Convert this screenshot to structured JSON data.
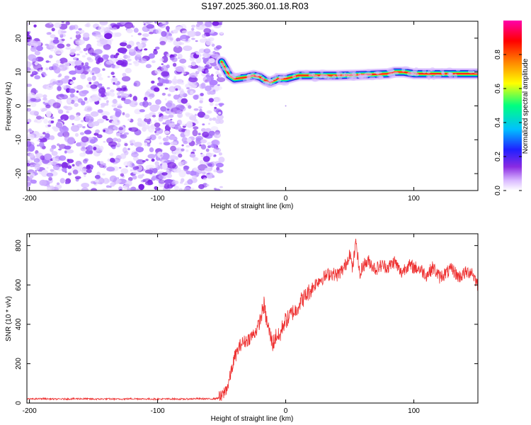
{
  "title": "S197.2025.360.01.18.R03",
  "chart_data": [
    {
      "id": "spectrogram",
      "type": "heatmap",
      "xlabel": "Height of straight line (km)",
      "ylabel": "Frequency (Hz)",
      "xlim": [
        -202,
        150
      ],
      "ylim": [
        -25,
        25
      ],
      "xticks": [
        -200,
        -100,
        0,
        100
      ],
      "yticks": [
        -20,
        -10,
        0,
        10,
        20
      ],
      "noise_region_x": [
        -202,
        -50
      ],
      "signal_x_start": -50,
      "signal_band_center_hz": [
        [
          -50,
          13
        ],
        [
          -47,
          11
        ],
        [
          -44,
          9
        ],
        [
          -40,
          8
        ],
        [
          -30,
          8.5
        ],
        [
          -25,
          9
        ],
        [
          -20,
          8.5
        ],
        [
          -16,
          7.5
        ],
        [
          -12,
          7
        ],
        [
          -6,
          8
        ],
        [
          0,
          8
        ],
        [
          5,
          8.5
        ],
        [
          10,
          9
        ],
        [
          20,
          9
        ],
        [
          40,
          9
        ],
        [
          60,
          9.2
        ],
        [
          80,
          9.5
        ],
        [
          85,
          10
        ],
        [
          92,
          10
        ],
        [
          100,
          9.5
        ],
        [
          110,
          9.5
        ],
        [
          150,
          9.5
        ]
      ],
      "colorbar": {
        "label": "Normalized spectral amplitude",
        "range": [
          0,
          1
        ],
        "ticks": [
          "0.0",
          "0.2",
          "0.4",
          "0.6",
          "0.8"
        ],
        "colors": [
          "#ffffff",
          "#d9b8ff",
          "#8a2be2",
          "#2020ff",
          "#00c0ff",
          "#00ff80",
          "#ffff00",
          "#ff8000",
          "#ff0000",
          "#ff00aa"
        ]
      }
    },
    {
      "id": "snr",
      "type": "line",
      "xlabel": "Height of straight line (km)",
      "ylabel": "SNR (10 * v/v)",
      "xlim": [
        -202,
        150
      ],
      "ylim": [
        0,
        860
      ],
      "xticks": [
        -200,
        -100,
        0,
        100
      ],
      "yticks": [
        0,
        200,
        400,
        600,
        800
      ],
      "color": "#ee3030",
      "series": [
        {
          "name": "SNR",
          "x": [
            -202,
            -190,
            -180,
            -170,
            -160,
            -150,
            -140,
            -130,
            -120,
            -110,
            -100,
            -90,
            -80,
            -70,
            -60,
            -55,
            -50,
            -45,
            -40,
            -35,
            -30,
            -25,
            -22,
            -20,
            -17,
            -15,
            -12,
            -10,
            -7,
            -5,
            -2,
            0,
            2,
            5,
            8,
            10,
            12,
            15,
            20,
            25,
            30,
            35,
            40,
            45,
            48,
            50,
            52,
            55,
            58,
            60,
            65,
            70,
            75,
            80,
            85,
            90,
            95,
            100,
            105,
            110,
            115,
            120,
            125,
            130,
            135,
            140,
            145,
            150
          ],
          "y": [
            20,
            22,
            20,
            21,
            22,
            20,
            21,
            20,
            22,
            21,
            20,
            21,
            20,
            22,
            21,
            22,
            30,
            90,
            230,
            300,
            320,
            350,
            380,
            420,
            500,
            420,
            340,
            300,
            350,
            330,
            400,
            420,
            430,
            460,
            470,
            500,
            520,
            540,
            580,
            620,
            640,
            660,
            650,
            680,
            720,
            770,
            680,
            820,
            640,
            700,
            720,
            680,
            700,
            690,
            720,
            660,
            700,
            690,
            680,
            650,
            690,
            640,
            660,
            680,
            640,
            660,
            670,
            600
          ]
        }
      ]
    }
  ]
}
